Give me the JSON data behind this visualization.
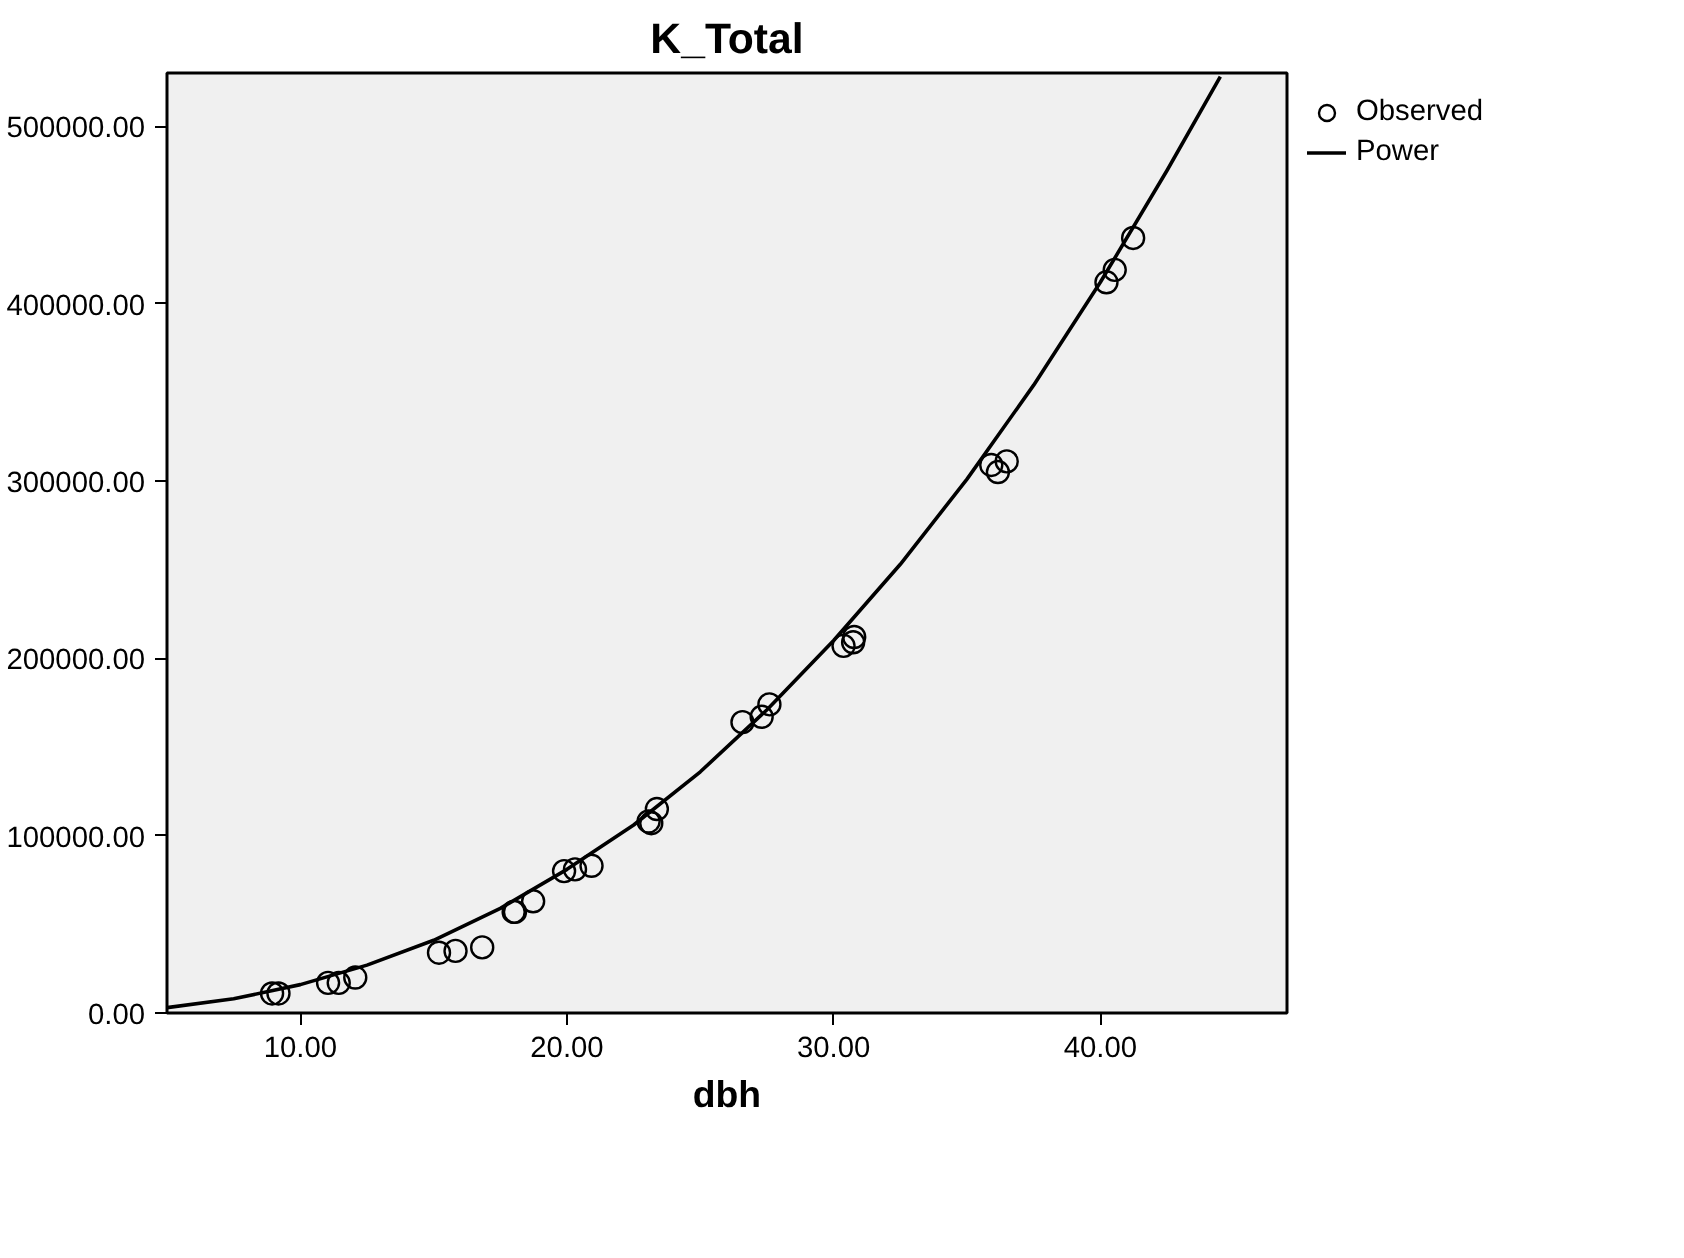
{
  "chart_data": {
    "type": "scatter",
    "title": "K_Total",
    "xlabel": "dbh",
    "xlim": [
      5,
      47
    ],
    "ylim": [
      0,
      530000
    ],
    "xticks": [
      {
        "value": 10,
        "label": "10.00"
      },
      {
        "value": 20,
        "label": "20.00"
      },
      {
        "value": 30,
        "label": "30.00"
      },
      {
        "value": 40,
        "label": "40.00"
      }
    ],
    "yticks": [
      {
        "value": 0,
        "label": "0.00"
      },
      {
        "value": 100000,
        "label": "100000.00"
      },
      {
        "value": 200000,
        "label": "200000.00"
      },
      {
        "value": 300000,
        "label": "300000.00"
      },
      {
        "value": 400000,
        "label": "400000.00"
      },
      {
        "value": 500000,
        "label": "500000.00"
      }
    ],
    "grid": false,
    "legend": "top right",
    "marker": "circle",
    "series": [
      {
        "name": "Observed",
        "color": "#000000",
        "x": [
          8.94,
          9.18,
          11.04,
          11.44,
          12.06,
          15.2,
          15.82,
          16.82,
          18.0,
          18.05,
          18.73,
          19.89,
          20.3,
          20.92,
          23.06,
          23.16,
          23.37,
          26.58,
          27.3,
          27.59,
          30.37,
          30.77,
          30.73,
          35.91,
          36.16,
          36.49,
          40.23,
          40.54,
          41.23
        ],
        "values": [
          11000,
          11000,
          17000,
          17000,
          20000,
          34000,
          35000,
          37000,
          57000,
          57000,
          63000,
          80000,
          81000,
          83000,
          108000,
          107000,
          115000,
          164000,
          167000,
          174000,
          207000,
          212000,
          209000,
          309000,
          305000,
          311000,
          412000,
          419000,
          437000
        ]
      },
      {
        "name": "Power",
        "type": "line",
        "marker": "none",
        "line_style": "solid",
        "color": "#000000",
        "x": [
          5,
          7.5,
          10,
          12.5,
          15,
          17.5,
          20,
          22.5,
          25,
          27.5,
          30,
          32.5,
          35,
          37.5,
          40,
          42.5,
          44.5
        ],
        "values": [
          3000,
          8000,
          16000,
          27000,
          41000,
          59000,
          81000,
          106000,
          136000,
          171000,
          210000,
          253000,
          301000,
          354000,
          412000,
          475000,
          528000
        ]
      }
    ]
  }
}
